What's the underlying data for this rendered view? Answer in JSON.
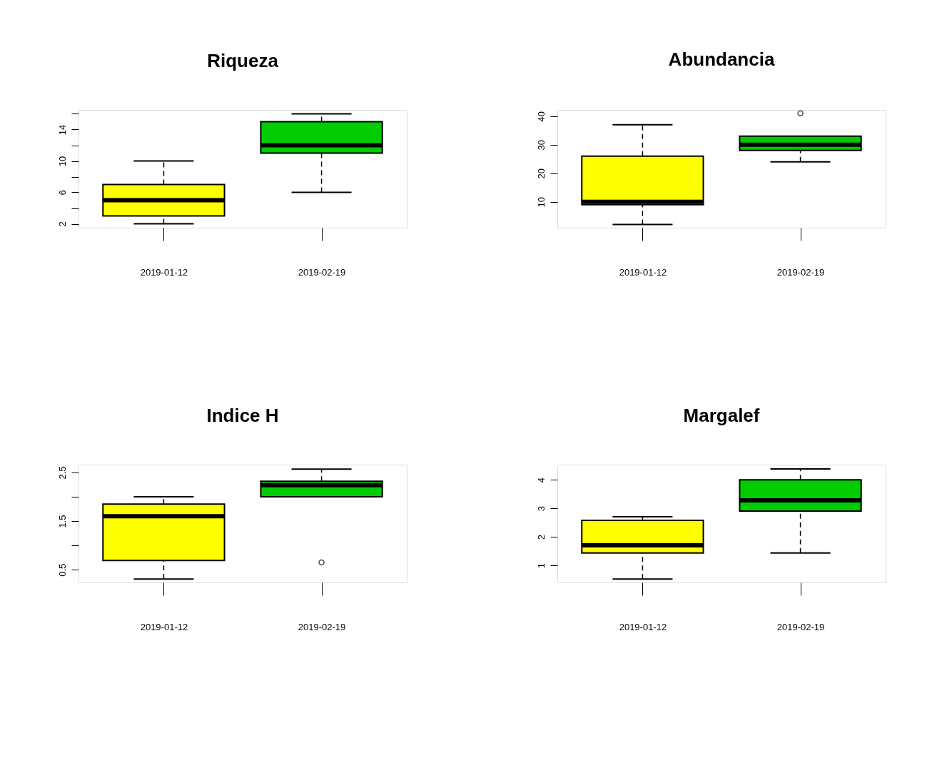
{
  "chart_data": [
    {
      "type": "box",
      "title": "Riqueza",
      "categories": [
        "2019-01-12",
        "2019-02-19"
      ],
      "colors": [
        "#ffff00",
        "#00cc00"
      ],
      "ylim": [
        1.5,
        16.5
      ],
      "yticks": [
        2,
        {
          "value": 4,
          "label": null
        },
        6,
        {
          "value": 8,
          "label": null
        },
        10,
        {
          "value": 12,
          "label": null
        },
        14,
        {
          "value": 16,
          "label": null
        }
      ],
      "boxes": [
        {
          "low": 2,
          "q1": 3,
          "median": 5,
          "q3": 7,
          "high": 10
        },
        {
          "low": 6,
          "q1": 11,
          "median": 12,
          "q3": 15,
          "high": 16
        }
      ]
    },
    {
      "type": "box",
      "title": "Abundancia",
      "categories": [
        "2019-01-12",
        "2019-02-19"
      ],
      "colors": [
        "#ffff00",
        "#00cc00"
      ],
      "ylim": [
        0.9,
        42.2
      ],
      "yticks": [
        10,
        20,
        30,
        40
      ],
      "boxes": [
        {
          "low": 2,
          "q1": 9,
          "median": 10,
          "q3": 26,
          "high": 37
        },
        {
          "low": 24,
          "q1": 28,
          "median": 30,
          "q3": 33,
          "high": 33,
          "outliers": [
            41
          ]
        }
      ]
    },
    {
      "type": "box",
      "title": "Indice H",
      "categories": [
        "2019-01-12",
        "2019-02-19"
      ],
      "colors": [
        "#ffff00",
        "#00cc00"
      ],
      "ylim": [
        0.24,
        2.66
      ],
      "yticks": [
        0.5,
        {
          "value": 1.0,
          "label": null
        },
        1.5,
        {
          "value": 2.0,
          "label": null
        },
        2.5
      ],
      "boxes": [
        {
          "low": 0.31,
          "q1": 0.69,
          "median": 1.6,
          "q3": 1.85,
          "high": 2.0
        },
        {
          "low": 2.0,
          "q1": 2.0,
          "median": 2.24,
          "q3": 2.32,
          "high": 2.57,
          "outliers": [
            0.65
          ]
        }
      ]
    },
    {
      "type": "box",
      "title": "Margalef",
      "categories": [
        "2019-01-12",
        "2019-02-19"
      ],
      "colors": [
        "#ffff00",
        "#00cc00"
      ],
      "ylim": [
        0.4,
        4.53
      ],
      "yticks": [
        1,
        2,
        3,
        4
      ],
      "boxes": [
        {
          "low": 0.52,
          "q1": 1.43,
          "median": 1.7,
          "q3": 2.58,
          "high": 2.7
        },
        {
          "low": 1.43,
          "q1": 2.9,
          "median": 3.28,
          "q3": 4.0,
          "high": 4.38
        }
      ]
    }
  ]
}
